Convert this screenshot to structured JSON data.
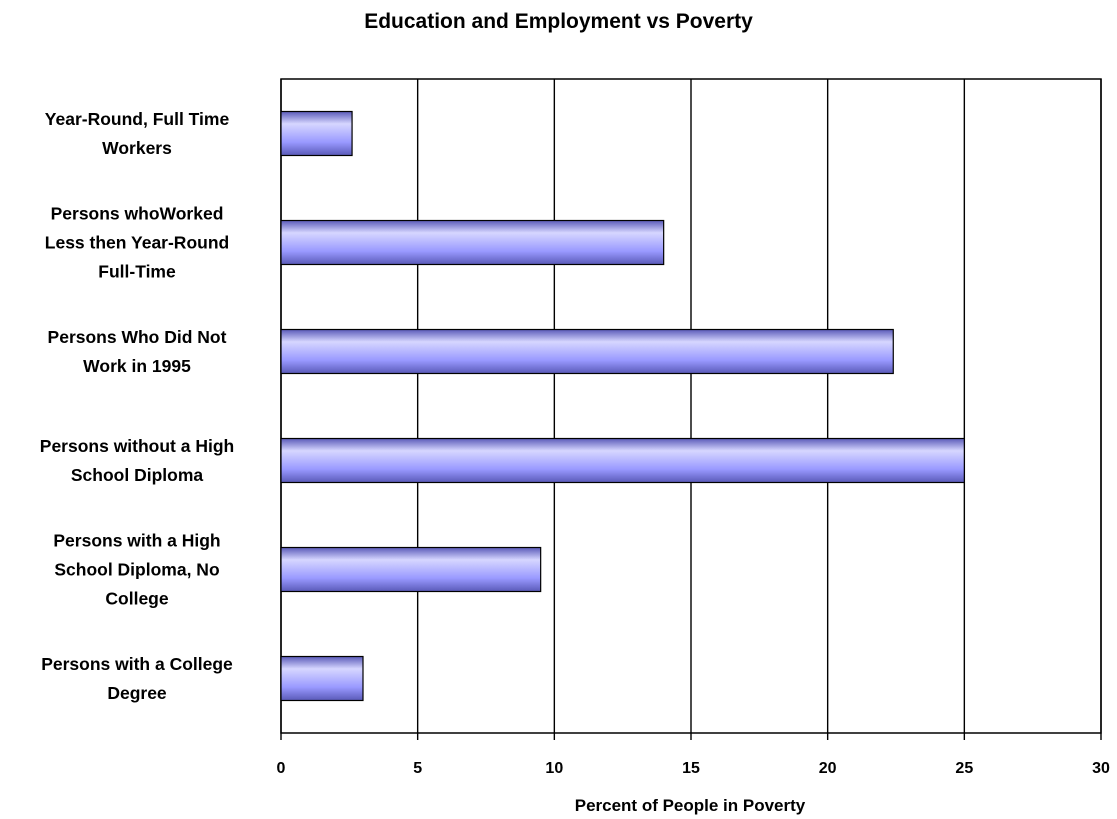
{
  "chart_data": {
    "type": "bar",
    "orientation": "horizontal",
    "title": "Education and Employment vs Poverty",
    "xlabel": "Percent of People in Poverty",
    "ylabel": "",
    "categories": [
      "Year-Round, Full Time\nWorkers",
      "Persons whoWorked\nLess then Year-Round\nFull-Time",
      "Persons Who Did Not\nWork in 1995",
      "Persons without a High\nSchool Diploma",
      "Persons with a High\nSchool Diploma, No\nCollege",
      "Persons with a College\nDegree"
    ],
    "values": [
      2.6,
      14.0,
      22.4,
      25.0,
      9.5,
      3.0
    ],
    "xlim": [
      0,
      30
    ],
    "xticks": [
      0,
      5,
      10,
      15,
      20,
      25,
      30
    ],
    "grid": "vertical",
    "legend": "none",
    "colors": {
      "bar_fill": "#9999ff",
      "bar_highlight": "#d6d6ff",
      "bar_shadow": "#5a5ab8",
      "bar_outline": "#000000",
      "gridline": "#000000",
      "plot_border": "#000000"
    }
  }
}
